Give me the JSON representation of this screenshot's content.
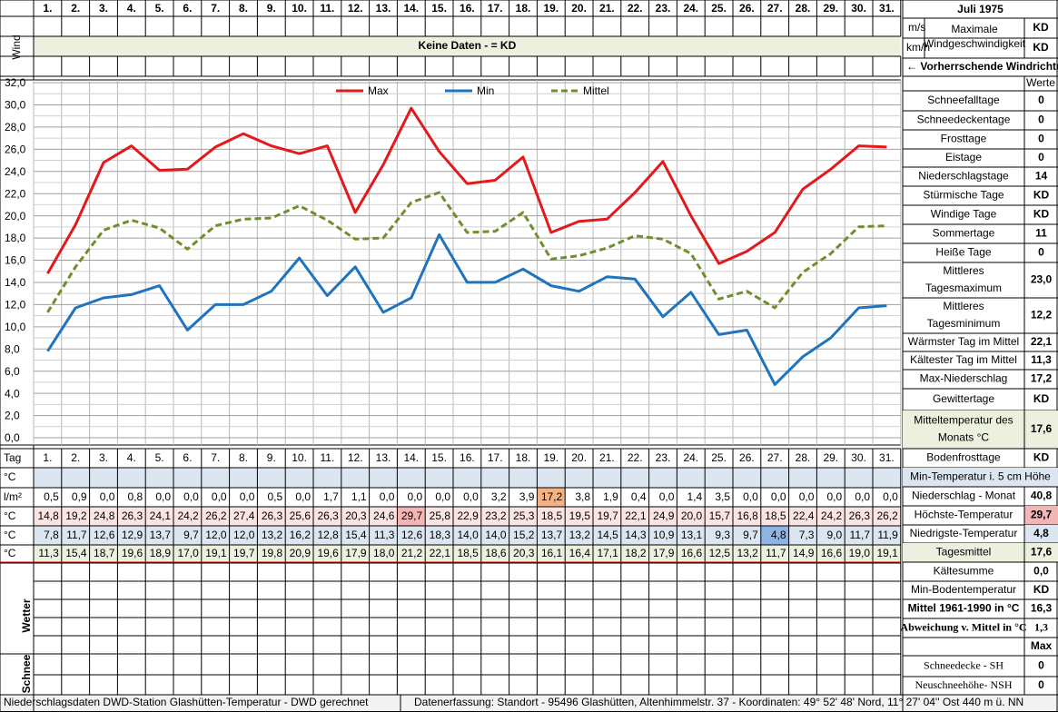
{
  "header": {
    "title": "Juli 1975",
    "wind_label": "Wind",
    "no_data": "Keine Daten -  = KD",
    "unit_ms": "m/s",
    "unit_kmh": "km/h",
    "max_wind_line1": "Maximale",
    "max_wind_line2": "Windgeschwindigkeit",
    "max_wind_ms": "KD",
    "max_wind_kmh": "KD",
    "wind_direction": "← Vorherrschende Windrichtung",
    "values_header": "Werte"
  },
  "chart_data": {
    "type": "line",
    "categories": [
      "1.",
      "2.",
      "3.",
      "4.",
      "5.",
      "6.",
      "7.",
      "8.",
      "9.",
      "10.",
      "11.",
      "12.",
      "13.",
      "14.",
      "15.",
      "16.",
      "17.",
      "18.",
      "19.",
      "20.",
      "21.",
      "22.",
      "23.",
      "24.",
      "25.",
      "26.",
      "27.",
      "28.",
      "29.",
      "30.",
      "31."
    ],
    "ylim": [
      0,
      32
    ],
    "yticks": [
      {
        "value": 0,
        "label": "0,0"
      },
      {
        "value": 2,
        "label": "2,0"
      },
      {
        "value": 4,
        "label": "4,0"
      },
      {
        "value": 6,
        "label": "6,0"
      },
      {
        "value": 8,
        "label": "8,0"
      },
      {
        "value": 10,
        "label": "10,0"
      },
      {
        "value": 12,
        "label": "12,0"
      },
      {
        "value": 14,
        "label": "14,0"
      },
      {
        "value": 16,
        "label": "16,0"
      },
      {
        "value": 18,
        "label": "18,0"
      },
      {
        "value": 20,
        "label": "20,0"
      },
      {
        "value": 22,
        "label": "22,0"
      },
      {
        "value": 24,
        "label": "24,0"
      },
      {
        "value": 26,
        "label": "26,0"
      },
      {
        "value": 28,
        "label": "28,0"
      },
      {
        "value": 30,
        "label": "30,0"
      },
      {
        "value": 32,
        "label": "32,0"
      }
    ],
    "grid": true,
    "legend": "top",
    "series": [
      {
        "name": "Max",
        "color": "#e3191c",
        "dashed": false,
        "values": [
          14.8,
          19.2,
          24.8,
          26.3,
          24.1,
          24.2,
          26.2,
          27.4,
          26.3,
          25.6,
          26.3,
          20.3,
          24.6,
          29.7,
          25.8,
          22.9,
          23.2,
          25.3,
          18.5,
          19.5,
          19.7,
          22.1,
          24.9,
          20.0,
          15.7,
          16.8,
          18.5,
          22.4,
          24.2,
          26.3,
          26.2
        ],
        "value_labels": [
          "14,8",
          "19,2",
          "24,8",
          "26,3",
          "24,1",
          "24,2",
          "26,2",
          "27,4",
          "26,3",
          "25,6",
          "26,3",
          "20,3",
          "24,6",
          "29,7",
          "25,8",
          "22,9",
          "23,2",
          "25,3",
          "18,5",
          "19,5",
          "19,7",
          "22,1",
          "24,9",
          "20,0",
          "15,7",
          "16,8",
          "18,5",
          "22,4",
          "24,2",
          "26,3",
          "26,2"
        ]
      },
      {
        "name": "Min",
        "color": "#1f74bd",
        "dashed": false,
        "values": [
          7.8,
          11.7,
          12.6,
          12.9,
          13.7,
          9.7,
          12.0,
          12.0,
          13.2,
          16.2,
          12.8,
          15.4,
          11.3,
          12.6,
          18.3,
          14.0,
          14.0,
          15.2,
          13.7,
          13.2,
          14.5,
          14.3,
          10.9,
          13.1,
          9.3,
          9.7,
          4.8,
          7.3,
          9.0,
          11.7,
          11.9
        ],
        "value_labels": [
          "7,8",
          "11,7",
          "12,6",
          "12,9",
          "13,7",
          "9,7",
          "12,0",
          "12,0",
          "13,2",
          "16,2",
          "12,8",
          "15,4",
          "11,3",
          "12,6",
          "18,3",
          "14,0",
          "14,0",
          "15,2",
          "13,7",
          "13,2",
          "14,5",
          "14,3",
          "10,9",
          "13,1",
          "9,3",
          "9,7",
          "4,8",
          "7,3",
          "9,0",
          "11,7",
          "11,9"
        ]
      },
      {
        "name": "Mittel",
        "color": "#6f8f2c",
        "dashed": true,
        "values": [
          11.3,
          15.4,
          18.7,
          19.6,
          18.9,
          17.0,
          19.1,
          19.7,
          19.8,
          20.9,
          19.6,
          17.9,
          18.0,
          21.2,
          22.1,
          18.5,
          18.6,
          20.3,
          16.1,
          16.4,
          17.1,
          18.2,
          17.9,
          16.6,
          12.5,
          13.2,
          11.7,
          14.9,
          16.6,
          19.0,
          19.1
        ],
        "value_labels": [
          "11,3",
          "15,4",
          "18,7",
          "19,6",
          "18,9",
          "17,0",
          "19,1",
          "19,7",
          "19,8",
          "20,9",
          "19,6",
          "17,9",
          "18,0",
          "21,2",
          "22,1",
          "18,5",
          "18,6",
          "20,3",
          "16,1",
          "16,4",
          "17,1",
          "18,2",
          "17,9",
          "16,6",
          "12,5",
          "13,2",
          "11,7",
          "14,9",
          "16,6",
          "19,0",
          "19,1"
        ]
      }
    ]
  },
  "table": {
    "day_label": "Tag",
    "blank_unit": "°C",
    "precip_unit": "l/m²",
    "max_unit": "°C",
    "min_unit": "°C",
    "mean_unit": "°C",
    "precipitation": [
      "0,5",
      "0,9",
      "0,0",
      "0,8",
      "0,0",
      "0,0",
      "0,0",
      "0,0",
      "0,5",
      "0,0",
      "1,7",
      "1,1",
      "0,0",
      "0,0",
      "0,0",
      "0,0",
      "3,2",
      "3,9",
      "17,2",
      "3,8",
      "1,9",
      "0,4",
      "0,0",
      "1,4",
      "3,5",
      "0,0",
      "0,0",
      "0,0",
      "0,0",
      "0,0",
      "0,0"
    ],
    "weather_label": "Wetter",
    "snow_label": "Schnee"
  },
  "stats": [
    {
      "label": "Schneefalltage",
      "value": "0"
    },
    {
      "label": "Schneedeckentage",
      "value": "0"
    },
    {
      "label": "Frosttage",
      "value": "0"
    },
    {
      "label": "Eistage",
      "value": "0"
    },
    {
      "label": "Niederschlagstage",
      "value": "14"
    },
    {
      "label": "Stürmische Tage",
      "value": "KD"
    },
    {
      "label": "Windige Tage",
      "value": "KD"
    },
    {
      "label": "Sommertage",
      "value": "11"
    },
    {
      "label": "Heiße Tage",
      "value": "0"
    },
    {
      "label": "Mittleres Tagesmaximum",
      "value": "23,0"
    },
    {
      "label": "Mittleres Tagesminimum",
      "value": "12,2"
    },
    {
      "label": "Wärmster Tag im Mittel",
      "value": "22,1"
    },
    {
      "label": "Kältester Tag im Mittel",
      "value": "11,3"
    },
    {
      "label": "Max-Niederschlag",
      "value": "17,2"
    },
    {
      "label": "Gewittertage",
      "value": "KD"
    },
    {
      "label": "Mitteltemperatur des Monats °C",
      "value": "17,6"
    },
    {
      "label": "Bodenfrosttage",
      "value": "KD"
    },
    {
      "label": "Min-Temperatur i. 5 cm Höhe"
    },
    {
      "label": "Niederschlag - Monat",
      "value": "40,8"
    },
    {
      "label": "Höchste-Temperatur",
      "value": "29,7"
    },
    {
      "label": "Niedrigste-Temperatur",
      "value": "4,8"
    },
    {
      "label": "Tagesmittel",
      "value": "17,6"
    },
    {
      "label": "Kältesumme",
      "value": "0,0"
    },
    {
      "label": "Min-Bodentemperatur",
      "value": "KD"
    },
    {
      "label": "Mittel 1961-1990 in °C",
      "value": "16,3"
    },
    {
      "label": "Abweichung v. Mittel in °C",
      "value": "1,3"
    },
    {
      "value": "Max"
    },
    {
      "label": "Schneedecke -  SH",
      "value": "0"
    },
    {
      "label": "Neuschneehöhe- NSH",
      "value": "0"
    }
  ],
  "footer": {
    "left": "Niederschlagsdaten DWD-Station Glashütten-Temperatur -  DWD gerechnet",
    "right": "Datenerfassung:  Standort -  95496  Glashütten, Altenhimmelstr. 37 - Koordinaten:  49° 52' 48' Nord,   11° 27' 04'' Ost   440 m ü. NN"
  }
}
